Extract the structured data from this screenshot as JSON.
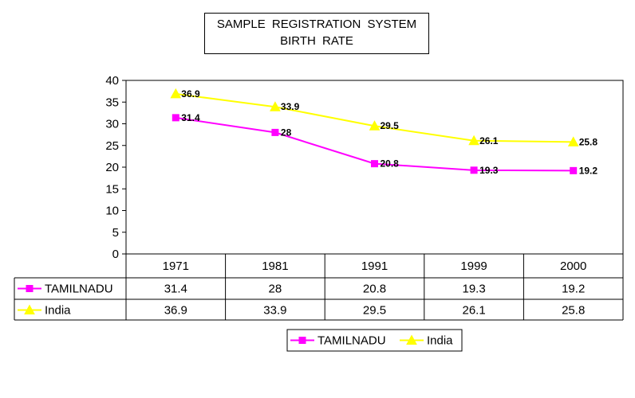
{
  "title": {
    "line1": "SAMPLE  REGISTRATION  SYSTEM",
    "line2": "BIRTH  RATE"
  },
  "chart_data": {
    "type": "line",
    "title": "SAMPLE REGISTRATION SYSTEM BIRTH RATE",
    "categories": [
      "1971",
      "1981",
      "1991",
      "1999",
      "2000"
    ],
    "ylim": [
      0,
      40
    ],
    "yticks": [
      "0",
      "5",
      "10",
      "15",
      "20",
      "25",
      "30",
      "35",
      "40"
    ],
    "series": [
      {
        "name": "TAMILNADU",
        "values": [
          31.4,
          28,
          20.8,
          19.3,
          19.2
        ],
        "labels": [
          "31.4",
          "28",
          "20.8",
          "19.3",
          "19.2"
        ],
        "color": "#ff00ff",
        "marker": "square"
      },
      {
        "name": "India",
        "values": [
          36.9,
          33.9,
          29.5,
          26.1,
          25.8
        ],
        "labels": [
          "36.9",
          "33.9",
          "29.5",
          "26.1",
          "25.8"
        ],
        "color": "#ffff00",
        "marker": "triangle"
      }
    ],
    "legend": "bottom-center",
    "data_table": true
  }
}
